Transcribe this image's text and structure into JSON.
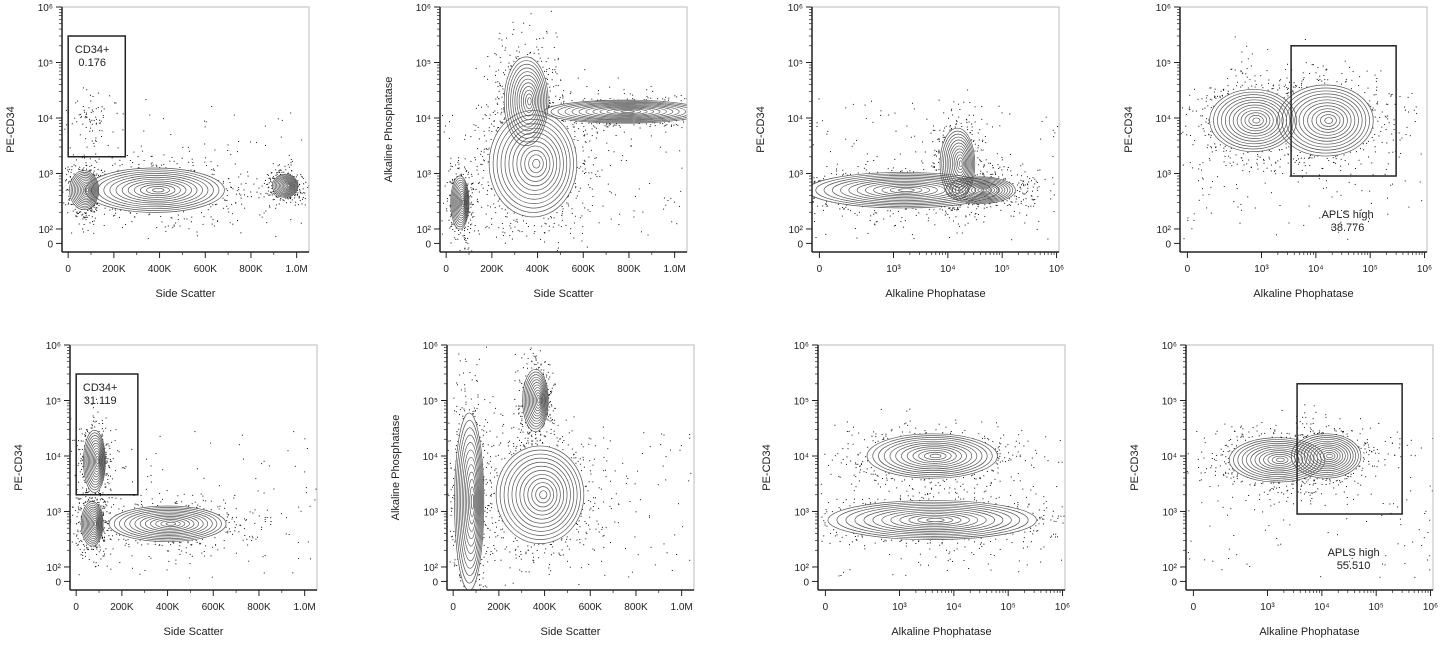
{
  "chart_data": [
    {
      "type": "contour",
      "xlabel": "Side Scatter",
      "ylabel": "PE-CD34",
      "xscale": "linear",
      "yscale": "biexponential",
      "xticks": [
        "0",
        "200K",
        "400K",
        "600K",
        "800K",
        "1.0M"
      ],
      "yticks": [
        "0",
        "10²",
        "10³",
        "10⁴",
        "10⁵",
        "10⁶"
      ],
      "gate": {
        "label": "CD34+",
        "value": "0.176",
        "x": [
          0,
          250000
        ],
        "y": [
          2000,
          300000
        ],
        "label_pos": "inside-top"
      },
      "populations": [
        {
          "x": 70000,
          "y": 500,
          "x_spread": 40000,
          "y_spread": 0.22
        },
        {
          "x": 380000,
          "y": 500,
          "x_spread": 190000,
          "y_spread": 0.25
        },
        {
          "x": 950000,
          "y": 600,
          "x_spread": 35000,
          "y_spread": 0.13
        },
        {
          "x": 100000,
          "y": 9000,
          "x_spread": 40000,
          "y_spread": 0.3,
          "sparse": true
        }
      ]
    },
    {
      "type": "contour",
      "xlabel": "Side Scatter",
      "ylabel": "Alkaline Phosphatase",
      "xscale": "linear",
      "yscale": "biexponential",
      "xticks": [
        "0",
        "200K",
        "400K",
        "600K",
        "800K",
        "1.0M"
      ],
      "yticks": [
        "0",
        "10²",
        "10³",
        "10⁴",
        "10⁵",
        "10⁶"
      ],
      "populations": [
        {
          "x": 60000,
          "y": 300,
          "x_spread": 25000,
          "y_spread": 0.3
        },
        {
          "x": 380000,
          "y": 1500,
          "x_spread": 120000,
          "y_spread": 0.6
        },
        {
          "x": 350000,
          "y": 20000,
          "x_spread": 60000,
          "y_spread": 0.5
        },
        {
          "x": 780000,
          "y": 13000,
          "x_spread": 220000,
          "y_spread": 0.13
        }
      ]
    },
    {
      "type": "contour",
      "xlabel": "Alkaline Phophatase",
      "ylabel": "PE-CD34",
      "xscale": "biexponential",
      "yscale": "biexponential",
      "xticks": [
        "0",
        "10³",
        "10⁴",
        "10⁵",
        "10⁶"
      ],
      "yticks": [
        "0",
        "10²",
        "10³",
        "10⁴",
        "10⁵",
        "10⁶"
      ],
      "populations": [
        {
          "x": 1500,
          "y": 500,
          "x_spread": 1.1,
          "y_spread": 0.2
        },
        {
          "x": 15000,
          "y": 1500,
          "x_spread": 0.2,
          "y_spread": 0.4
        },
        {
          "x": 40000,
          "y": 500,
          "x_spread": 0.4,
          "y_spread": 0.15
        }
      ]
    },
    {
      "type": "contour",
      "xlabel": "Alkaline Phophatase",
      "ylabel": "PE-CD34",
      "xscale": "biexponential",
      "yscale": "biexponential",
      "xticks": [
        "0",
        "10³",
        "10⁴",
        "10⁵",
        "10⁶"
      ],
      "yticks": [
        "0",
        "10²",
        "10³",
        "10⁴",
        "10⁵",
        "10⁶"
      ],
      "gate": {
        "label": "APLS high",
        "value": "38.776",
        "x": [
          3500,
          300000
        ],
        "y": [
          900,
          200000
        ],
        "label_pos": "below"
      },
      "populations": [
        {
          "x": 700,
          "y": 9000,
          "x_spread": 0.5,
          "y_spread": 0.35
        },
        {
          "x": 15000,
          "y": 9000,
          "x_spread": 0.55,
          "y_spread": 0.4
        }
      ]
    },
    {
      "type": "contour",
      "xlabel": "Side Scatter",
      "ylabel": "PE-CD34",
      "xscale": "linear",
      "yscale": "biexponential",
      "xticks": [
        "0",
        "200K",
        "400K",
        "600K",
        "800K",
        "1.0M"
      ],
      "yticks": [
        "0",
        "10²",
        "10³",
        "10⁴",
        "10⁵",
        "10⁶"
      ],
      "gate": {
        "label": "CD34+",
        "value": "31.119",
        "x": [
          0,
          270000
        ],
        "y": [
          2000,
          300000
        ],
        "label_pos": "inside-top"
      },
      "populations": [
        {
          "x": 80000,
          "y": 8000,
          "x_spread": 30000,
          "y_spread": 0.35
        },
        {
          "x": 70000,
          "y": 600,
          "x_spread": 30000,
          "y_spread": 0.25
        },
        {
          "x": 400000,
          "y": 600,
          "x_spread": 160000,
          "y_spread": 0.2
        }
      ]
    },
    {
      "type": "contour",
      "xlabel": "Side Scatter",
      "ylabel": "Alkaline Phosphatase",
      "xscale": "linear",
      "yscale": "biexponential",
      "xticks": [
        "0",
        "200K",
        "400K",
        "600K",
        "800K",
        "1.0M"
      ],
      "yticks": [
        "0",
        "10²",
        "10³",
        "10⁴",
        "10⁵",
        "10⁶"
      ],
      "populations": [
        {
          "x": 70000,
          "y": 1500,
          "x_spread": 40000,
          "y_spread": 1.0
        },
        {
          "x": 380000,
          "y": 2000,
          "x_spread": 120000,
          "y_spread": 0.55
        },
        {
          "x": 360000,
          "y": 100000,
          "x_spread": 35000,
          "y_spread": 0.35
        }
      ]
    },
    {
      "type": "contour",
      "xlabel": "Alkaline Phophatase",
      "ylabel": "PE-CD34",
      "xscale": "biexponential",
      "yscale": "biexponential",
      "xticks": [
        "0",
        "10³",
        "10⁴",
        "10⁵",
        "10⁶"
      ],
      "yticks": [
        "0",
        "10²",
        "10³",
        "10⁴",
        "10⁵",
        "10⁶"
      ],
      "populations": [
        {
          "x": 4000,
          "y": 10000,
          "x_spread": 0.75,
          "y_spread": 0.25
        },
        {
          "x": 4000,
          "y": 700,
          "x_spread": 1.2,
          "y_spread": 0.22
        }
      ]
    },
    {
      "type": "contour",
      "xlabel": "Alkaline Phophatase",
      "ylabel": "PE-CD34",
      "xscale": "biexponential",
      "yscale": "biexponential",
      "xticks": [
        "0",
        "10³",
        "10⁴",
        "10⁵",
        "10⁶"
      ],
      "yticks": [
        "0",
        "10²",
        "10³",
        "10⁴",
        "10⁵",
        "10⁶"
      ],
      "gate": {
        "label": "APLS high",
        "value": "55.510",
        "x": [
          3500,
          300000
        ],
        "y": [
          900,
          200000
        ],
        "label_pos": "below"
      },
      "populations": [
        {
          "x": 1500,
          "y": 8500,
          "x_spread": 0.55,
          "y_spread": 0.25
        },
        {
          "x": 12000,
          "y": 10000,
          "x_spread": 0.4,
          "y_spread": 0.25
        }
      ]
    }
  ]
}
